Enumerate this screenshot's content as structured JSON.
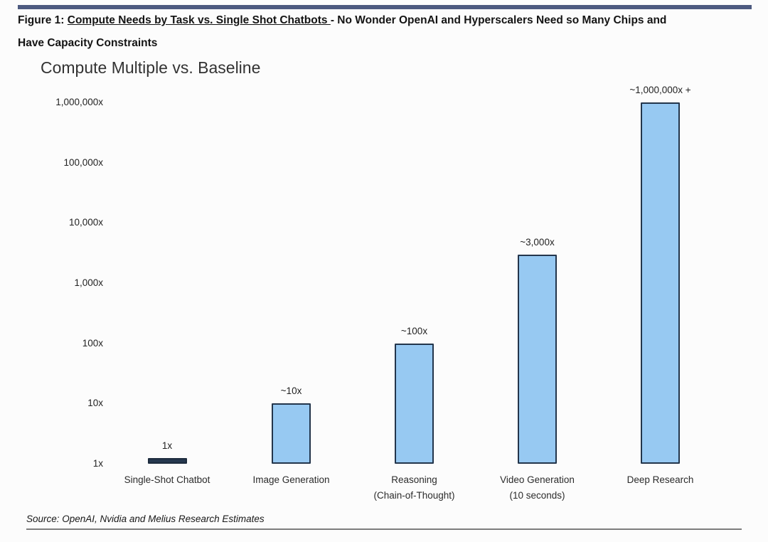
{
  "caption": {
    "prefix": "Figure 1: ",
    "underlined": "Compute Needs by Task vs. Single Shot Chatbots ",
    "rest_line1": "- No Wonder OpenAI and Hyperscalers Need so Many Chips and",
    "rest_line2": "Have Capacity Constraints"
  },
  "source_note": "Source: OpenAI, Nvidia and Melius Research Estimates",
  "colors": {
    "top_rule": "#4d5a80",
    "bottom_rule": "#7d7d7d",
    "bar_fill": "#97c9f2",
    "bar_border": "#23354b",
    "baseline_bar_fill": "#26384f"
  },
  "chart_data": {
    "type": "bar",
    "title": "Compute Multiple vs. Baseline",
    "xlabel": "",
    "ylabel": "",
    "scale": "log10",
    "ylim": [
      1,
      1000000
    ],
    "gridlines": false,
    "legend": null,
    "yticks": [
      {
        "label": "1,000,000x",
        "value": 1000000
      },
      {
        "label": "100,000x",
        "value": 100000
      },
      {
        "label": "10,000x",
        "value": 10000
      },
      {
        "label": "1,000x",
        "value": 1000
      },
      {
        "label": "100x",
        "value": 100
      },
      {
        "label": "10x",
        "value": 10
      },
      {
        "label": "1x",
        "value": 1
      }
    ],
    "categories": [
      {
        "label_lines": [
          "Single-Shot Chatbot"
        ],
        "value": 1,
        "value_label": "1x",
        "fill": "#26384f",
        "border": "#1d2b3d"
      },
      {
        "label_lines": [
          "Image Generation"
        ],
        "value": 10,
        "value_label": "~10x",
        "fill": "#97c9f2",
        "border": "#23354b"
      },
      {
        "label_lines": [
          "Reasoning",
          "(Chain-of-Thought)"
        ],
        "value": 100,
        "value_label": "~100x",
        "fill": "#97c9f2",
        "border": "#23354b"
      },
      {
        "label_lines": [
          "Video Generation",
          "(10 seconds)"
        ],
        "value": 3000,
        "value_label": "~3,000x",
        "fill": "#97c9f2",
        "border": "#23354b"
      },
      {
        "label_lines": [
          "Deep Research"
        ],
        "value": 1000000,
        "value_label": "~1,000,000x +",
        "fill": "#97c9f2",
        "border": "#23354b"
      }
    ]
  }
}
